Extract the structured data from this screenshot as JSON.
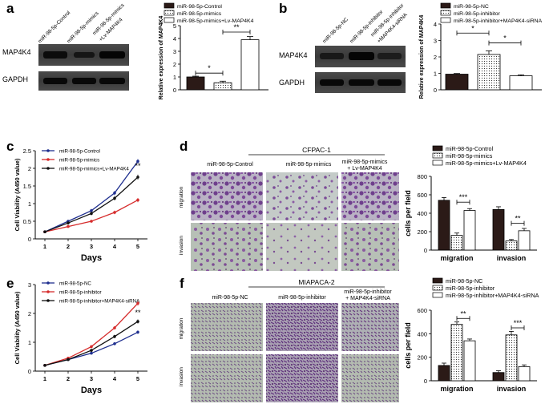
{
  "panels": {
    "a": {
      "letter": "a",
      "blot_lanes": [
        "miR-98-5p-Control",
        "miR-98-5p-mimics",
        "miR-98-5p-mimics\n+Lv-MAP4K4"
      ],
      "blot_rows": [
        "MAP4K4",
        "GAPDH"
      ]
    },
    "b": {
      "letter": "b",
      "blot_lanes": [
        "miR-98-5p-NC",
        "miR-98-5p-inhibitor",
        "miR-98-5p-inhibitor\n+MAP4K4-siRNA"
      ],
      "blot_rows": [
        "MAP4K4",
        "GAPDH"
      ]
    },
    "c": {
      "letter": "c"
    },
    "d": {
      "letter": "d",
      "title": "CFPAC-1",
      "columns": [
        "miR-98-5p-Control",
        "miR-98-5p-mimics",
        "miR-98-5p-mimics\n+ Lv-MAP4K4"
      ],
      "rows": [
        "migration",
        "invasion"
      ]
    },
    "e": {
      "letter": "e"
    },
    "f": {
      "letter": "f",
      "title": "MIAPACA-2",
      "columns": [
        "miR-98-5p-NC",
        "miR-98-5p-inhibitor",
        "miR-98-5p-inhibitor\n+ MAP4K4-siRNA"
      ],
      "rows": [
        "migration",
        "invasion"
      ]
    }
  },
  "colors": {
    "dark": "#2b1a17",
    "purple": "#7a4a8e",
    "blue": "#1f2f8f",
    "red": "#d62c2c",
    "black": "#111111"
  },
  "chart_data": [
    {
      "id": "a-bar",
      "type": "bar",
      "ylabel": "Relative expression of MAP4K4",
      "ylim": [
        0,
        5
      ],
      "yticks": [
        0,
        1,
        2,
        3,
        4,
        5
      ],
      "categories": [
        "miR-98-5p-Control",
        "miR-98-5p-mimics",
        "miR-98-5p-mimics+Lv-MAP4K4"
      ],
      "values": [
        1.0,
        0.55,
        3.9
      ],
      "errors": [
        0.06,
        0.12,
        0.25
      ],
      "fills": [
        "dark",
        "dots",
        "white"
      ],
      "legend": [
        "miR-98-5p-Control",
        "miR-98-5p-mimics",
        "miR-98-5p-mimics+Lv-MAP4K4"
      ],
      "sig": [
        {
          "from": 0,
          "to": 1,
          "y": 1.3,
          "label": "*"
        },
        {
          "from": 1,
          "to": 2,
          "y": 4.5,
          "label": "**"
        }
      ]
    },
    {
      "id": "b-bar",
      "type": "bar",
      "ylabel": "Relative expression of MAP4K4",
      "ylim": [
        0,
        4
      ],
      "yticks": [
        0,
        1,
        2,
        3,
        4
      ],
      "categories": [
        "miR-98-5p-NC",
        "miR-98-5p-inhibitor",
        "miR-98-5p-inhibitor+MAP4K4-siRNA"
      ],
      "values": [
        0.95,
        2.15,
        0.85
      ],
      "errors": [
        0.04,
        0.22,
        0.06
      ],
      "fills": [
        "dark",
        "dots",
        "white"
      ],
      "legend": [
        "miR-98-5p-NC",
        "miR-98-5p-inhibitor",
        "miR-98-5p-inhibitor+MAP4K4-siRNA"
      ],
      "sig": [
        {
          "from": 0,
          "to": 1,
          "y": 3.45,
          "label": "*"
        },
        {
          "from": 1,
          "to": 2,
          "y": 2.85,
          "label": "*"
        }
      ]
    },
    {
      "id": "c-line",
      "type": "line",
      "xlabel": "Days",
      "ylabel": "Cell Viability (A450 value)",
      "x": [
        1,
        2,
        3,
        4,
        5
      ],
      "ylim": [
        0,
        2.5
      ],
      "yticks": [
        0.0,
        0.5,
        1.0,
        1.5,
        2.0,
        2.5
      ],
      "series": [
        {
          "name": "miR-98-5p-Control",
          "color": "blue",
          "values": [
            0.2,
            0.5,
            0.8,
            1.3,
            2.2
          ],
          "err": [
            0.02,
            0.04,
            0.05,
            0.06,
            0.06
          ]
        },
        {
          "name": "miR-98-5p-mimics",
          "color": "red",
          "values": [
            0.2,
            0.35,
            0.5,
            0.75,
            1.1
          ],
          "err": [
            0.02,
            0.03,
            0.04,
            0.05,
            0.06
          ]
        },
        {
          "name": "miR-98-5p-mimics+Lv-MAP4K4",
          "color": "black",
          "values": [
            0.2,
            0.45,
            0.72,
            1.15,
            1.75
          ],
          "err": [
            0.02,
            0.04,
            0.05,
            0.06,
            0.07
          ]
        }
      ],
      "annotation": {
        "x": 5,
        "y": 2.0,
        "label": "**"
      }
    },
    {
      "id": "d-bar",
      "type": "bar",
      "ylabel": "cells per field",
      "ylim": [
        0,
        800
      ],
      "yticks": [
        0,
        200,
        400,
        600,
        800
      ],
      "categories": [
        "migration",
        "invasion"
      ],
      "series": [
        {
          "name": "miR-98-5p-Control",
          "fill": "dark",
          "values": [
            540,
            440
          ],
          "err": [
            30,
            30
          ]
        },
        {
          "name": "miR-98-5p-mimics",
          "fill": "dots",
          "values": [
            160,
            100
          ],
          "err": [
            25,
            15
          ]
        },
        {
          "name": "miR-98-5p-mimics+Lv-MAP4K4",
          "fill": "white",
          "values": [
            430,
            210
          ],
          "err": [
            20,
            25
          ]
        }
      ],
      "sig": [
        {
          "group": 0,
          "from": 1,
          "to": 2,
          "y": 520,
          "label": "***"
        },
        {
          "group": 1,
          "from": 1,
          "to": 2,
          "y": 290,
          "label": "**"
        }
      ]
    },
    {
      "id": "e-line",
      "type": "line",
      "xlabel": "Days",
      "ylabel": "Cell Viability (A450 value)",
      "x": [
        1,
        2,
        3,
        4,
        5
      ],
      "ylim": [
        0,
        3
      ],
      "yticks": [
        0,
        1,
        2,
        3
      ],
      "series": [
        {
          "name": "miR-98-5p-NC",
          "color": "blue",
          "values": [
            0.2,
            0.4,
            0.62,
            0.95,
            1.35
          ],
          "err": [
            0.02,
            0.03,
            0.04,
            0.05,
            0.06
          ]
        },
        {
          "name": "miR-98-5p-inhibitor",
          "color": "red",
          "values": [
            0.2,
            0.45,
            0.85,
            1.5,
            2.35
          ],
          "err": [
            0.02,
            0.03,
            0.05,
            0.06,
            0.08
          ]
        },
        {
          "name": "miR-98-5p-inhibitor+MAP4K4-siRNA",
          "color": "black",
          "values": [
            0.2,
            0.4,
            0.72,
            1.2,
            1.72
          ],
          "err": [
            0.02,
            0.03,
            0.05,
            0.06,
            0.07
          ]
        }
      ],
      "annotation": {
        "x": 5,
        "y": 1.95,
        "label": "**"
      }
    },
    {
      "id": "f-bar",
      "type": "bar",
      "ylabel": "cells per field",
      "ylim": [
        0,
        600
      ],
      "yticks": [
        0,
        200,
        400,
        600
      ],
      "categories": [
        "migration",
        "invasion"
      ],
      "series": [
        {
          "name": "miR-98-5p-NC",
          "fill": "dark",
          "values": [
            130,
            70
          ],
          "err": [
            20,
            15
          ]
        },
        {
          "name": "miR-98-5p-inhibitor",
          "fill": "dots",
          "values": [
            480,
            390
          ],
          "err": [
            20,
            30
          ]
        },
        {
          "name": "miR-98-5p-inhibitor+MAP4K4-siRNA",
          "fill": "white",
          "values": [
            340,
            120
          ],
          "err": [
            15,
            15
          ]
        }
      ],
      "sig": [
        {
          "group": 0,
          "from": 1,
          "to": 2,
          "y": 530,
          "label": "**"
        },
        {
          "group": 1,
          "from": 1,
          "to": 2,
          "y": 450,
          "label": "***"
        }
      ]
    }
  ]
}
